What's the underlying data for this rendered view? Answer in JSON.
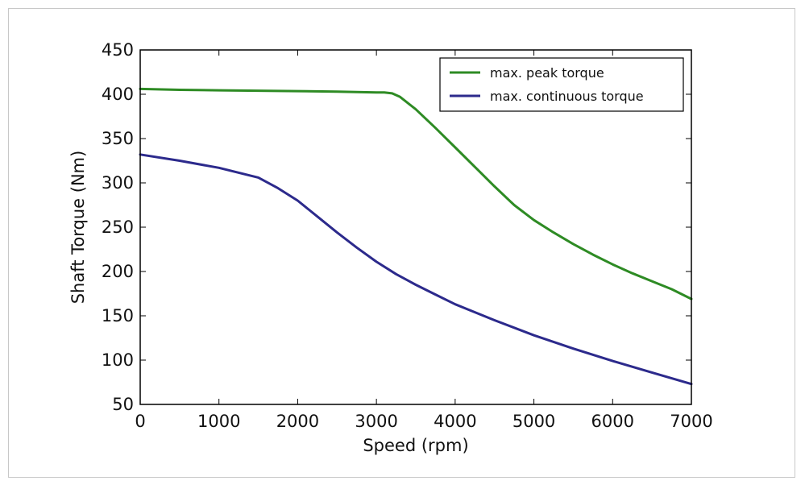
{
  "chart_data": {
    "type": "line",
    "title": "",
    "xlabel": "Speed (rpm)",
    "ylabel": "Shaft Torque (Nm)",
    "xlim": [
      0,
      7000
    ],
    "ylim": [
      50,
      450
    ],
    "xticks": [
      0,
      1000,
      2000,
      3000,
      4000,
      5000,
      6000,
      7000
    ],
    "yticks": [
      50,
      100,
      150,
      200,
      250,
      300,
      350,
      400,
      450
    ],
    "grid": false,
    "legend_position": "top-right",
    "series": [
      {
        "name": "max. peak torque",
        "color": "#2e8b24",
        "x": [
          0,
          500,
          1000,
          1500,
          2000,
          2500,
          3000,
          3100,
          3200,
          3300,
          3500,
          3750,
          4000,
          4250,
          4500,
          4750,
          5000,
          5250,
          5500,
          5750,
          6000,
          6250,
          6500,
          6750,
          7000
        ],
        "y": [
          406,
          405,
          404.5,
          404,
          403.5,
          403,
          402,
          402,
          401,
          397,
          383,
          362,
          340,
          318,
          296,
          275,
          258,
          244,
          231,
          219,
          208,
          198,
          189,
          180,
          169
        ]
      },
      {
        "name": "max. continuous torque",
        "color": "#2c2a8c",
        "x": [
          0,
          500,
          1000,
          1500,
          1750,
          2000,
          2250,
          2500,
          2750,
          3000,
          3250,
          3500,
          3750,
          4000,
          4500,
          5000,
          5500,
          6000,
          6500,
          7000
        ],
        "y": [
          332,
          325,
          317,
          306,
          294,
          280,
          262,
          244,
          227,
          211,
          197,
          185,
          174,
          163,
          145,
          128,
          113,
          99,
          86,
          73
        ]
      }
    ]
  }
}
